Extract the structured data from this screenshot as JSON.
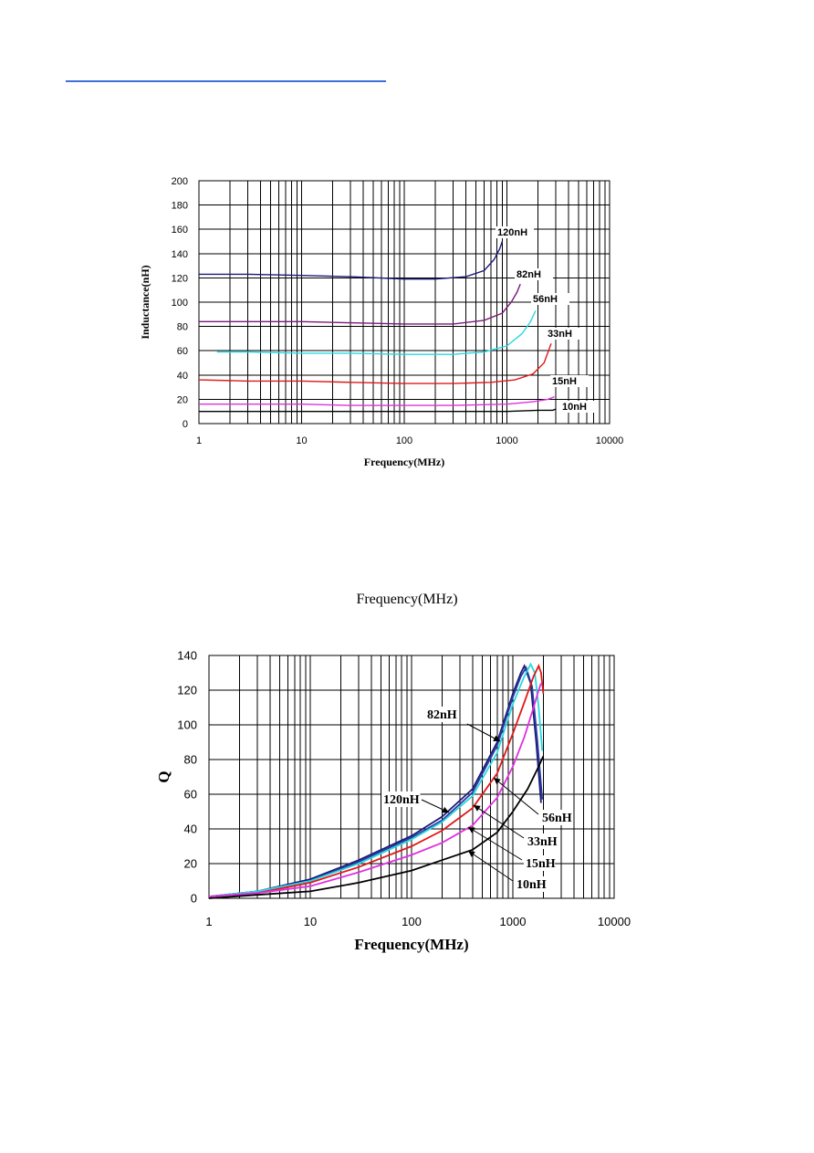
{
  "page": {
    "mid_caption": "Frequency(MHz)"
  },
  "chart_data": [
    {
      "type": "line",
      "xscale": "log",
      "xlim": [
        1,
        10000
      ],
      "ylim": [
        0,
        200
      ],
      "xticks": [
        "1",
        "10",
        "100",
        "1000",
        "10000"
      ],
      "yticks": [
        "0",
        "20",
        "40",
        "60",
        "80",
        "100",
        "120",
        "140",
        "160",
        "180",
        "200"
      ],
      "xlabel": "Frequency(MHz)",
      "ylabel": "Inductance(nH)",
      "grid": true,
      "series": [
        {
          "name": "120nH",
          "color": "#1a1a7a",
          "x": [
            1,
            3,
            10,
            30,
            100,
            200,
            400,
            600,
            750,
            850,
            900
          ],
          "y": [
            123,
            123,
            122,
            121,
            119,
            119,
            121,
            126,
            135,
            144,
            150
          ]
        },
        {
          "name": "82nH",
          "color": "#7a1a7a",
          "x": [
            1,
            3,
            10,
            30,
            100,
            300,
            600,
            900,
            1100,
            1250,
            1350
          ],
          "y": [
            84,
            84,
            84,
            83,
            82,
            82,
            85,
            91,
            100,
            108,
            115
          ]
        },
        {
          "name": "56nH",
          "color": "#28d8e0",
          "x": [
            1.5,
            3,
            10,
            30,
            100,
            300,
            600,
            1000,
            1400,
            1700,
            1900
          ],
          "y": [
            59,
            59,
            58,
            58,
            57,
            57,
            59,
            64,
            74,
            84,
            93
          ]
        },
        {
          "name": "33nH",
          "color": "#e01818",
          "x": [
            1,
            3,
            10,
            30,
            100,
            300,
            700,
            1200,
            1800,
            2300,
            2700
          ],
          "y": [
            36,
            35,
            35,
            34,
            33,
            33,
            34,
            36,
            41,
            50,
            66
          ]
        },
        {
          "name": "15nH",
          "color": "#e030e0",
          "x": [
            1,
            3,
            10,
            30,
            100,
            300,
            1000,
            1800,
            2500,
            2900
          ],
          "y": [
            16,
            16,
            16,
            15,
            15,
            15,
            16,
            18,
            20,
            22
          ]
        },
        {
          "name": "10nH",
          "color": "#000000",
          "x": [
            1,
            3,
            10,
            30,
            100,
            300,
            1000,
            2000,
            2800,
            3000
          ],
          "y": [
            10,
            10,
            10,
            10,
            10,
            10,
            10,
            11,
            11,
            12
          ]
        }
      ]
    },
    {
      "type": "line",
      "xscale": "log",
      "xlim": [
        1,
        10000
      ],
      "ylim": [
        0,
        140
      ],
      "xticks": [
        "1",
        "10",
        "100",
        "1000",
        "10000"
      ],
      "yticks": [
        "0",
        "20",
        "40",
        "60",
        "80",
        "100",
        "120",
        "140"
      ],
      "xlabel": "Frequency(MHz)",
      "ylabel": "Q",
      "grid": true,
      "series": [
        {
          "name": "120nH",
          "color": "#1a1a7a",
          "x": [
            1,
            3,
            10,
            30,
            100,
            200,
            400,
            700,
            1000,
            1200,
            1300,
            1500,
            1700,
            1900
          ],
          "y": [
            1,
            4,
            11,
            22,
            36,
            47,
            63,
            90,
            118,
            130,
            134,
            124,
            90,
            55
          ]
        },
        {
          "name": "82nH",
          "color": "#2c3a9e",
          "x": [
            1,
            3,
            10,
            30,
            100,
            200,
            400,
            700,
            1000,
            1200,
            1350,
            1550,
            1750,
            1950
          ],
          "y": [
            1,
            4,
            10,
            21,
            35,
            45,
            61,
            88,
            116,
            128,
            133,
            122,
            90,
            57
          ]
        },
        {
          "name": "56nH",
          "color": "#28d8e0",
          "x": [
            1,
            3,
            10,
            30,
            100,
            200,
            400,
            700,
            1000,
            1300,
            1500,
            1650,
            1800,
            1950
          ],
          "y": [
            1,
            4,
            10,
            20,
            34,
            44,
            59,
            84,
            112,
            128,
            135,
            130,
            110,
            85
          ]
        },
        {
          "name": "33nH",
          "color": "#e01818",
          "x": [
            1,
            3,
            10,
            30,
            100,
            200,
            400,
            700,
            1000,
            1300,
            1600,
            1800,
            1900,
            2000
          ],
          "y": [
            1,
            3,
            9,
            18,
            30,
            39,
            52,
            72,
            95,
            113,
            128,
            134,
            130,
            118
          ]
        },
        {
          "name": "15nH",
          "color": "#e030e0",
          "x": [
            1,
            3,
            10,
            30,
            100,
            200,
            400,
            700,
            1000,
            1300,
            1600,
            1800,
            1900
          ],
          "y": [
            1,
            3,
            7,
            15,
            25,
            32,
            42,
            58,
            76,
            93,
            110,
            120,
            124
          ]
        },
        {
          "name": "10nH",
          "color": "#000000",
          "x": [
            1,
            3,
            10,
            30,
            100,
            200,
            400,
            700,
            1000,
            1400,
            1800,
            2000
          ],
          "y": [
            0,
            2,
            4,
            9,
            16,
            22,
            28,
            38,
            50,
            63,
            76,
            82
          ]
        }
      ]
    }
  ]
}
